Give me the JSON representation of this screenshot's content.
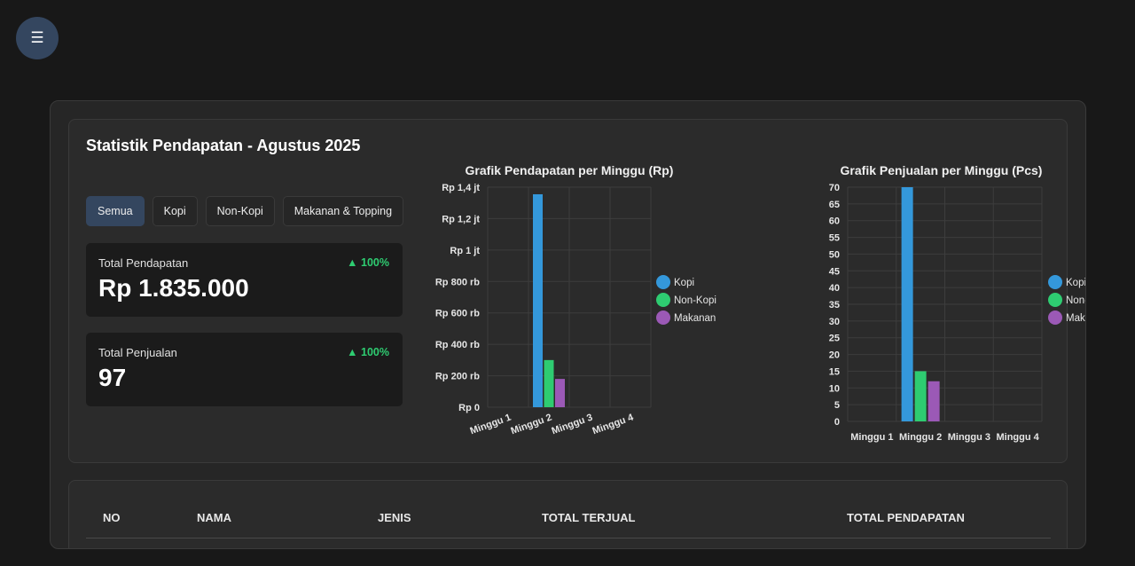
{
  "menu": {
    "icon": "hamburger-icon",
    "glyph": "☰"
  },
  "stats_card": {
    "title": "Statistik Pendapatan - Agustus 2025",
    "filters": [
      {
        "label": "Semua",
        "active": true
      },
      {
        "label": "Kopi",
        "active": false
      },
      {
        "label": "Non-Kopi",
        "active": false
      },
      {
        "label": "Makanan & Topping",
        "active": false
      }
    ],
    "total_pendapatan": {
      "label": "Total Pendapatan",
      "change": "▲ 100%",
      "value": "Rp 1.835.000"
    },
    "total_penjualan": {
      "label": "Total Penjualan",
      "change": "▲ 100%",
      "value": "97"
    }
  },
  "table": {
    "headers": [
      "NO",
      "NAMA",
      "JENIS",
      "TOTAL TERJUAL",
      "TOTAL PENDAPATAN"
    ]
  },
  "chart_data": [
    {
      "type": "bar",
      "title": "Grafik Pendapatan per Minggu (Rp)",
      "categories": [
        "Minggu 1",
        "Minggu 2",
        "Minggu 3",
        "Minggu 4"
      ],
      "ylim": [
        0,
        1400000
      ],
      "yticks": [
        0,
        200000,
        400000,
        600000,
        800000,
        1000000,
        1200000,
        1400000
      ],
      "ytick_labels": [
        "Rp 0",
        "Rp 200 rb",
        "Rp 400 rb",
        "Rp 600 rb",
        "Rp 800 rb",
        "Rp 1 jt",
        "Rp 1,2 jt",
        "Rp 1,4 jt"
      ],
      "grid": true,
      "legend": "right",
      "series": [
        {
          "name": "Kopi",
          "color": "#3498db",
          "values": [
            0,
            1355000,
            0,
            0
          ]
        },
        {
          "name": "Non-Kopi",
          "color": "#2ecc71",
          "values": [
            0,
            300000,
            0,
            0
          ]
        },
        {
          "name": "Makanan",
          "color": "#9b59b6",
          "values": [
            0,
            180000,
            0,
            0
          ]
        }
      ]
    },
    {
      "type": "bar",
      "title": "Grafik Penjualan per Minggu (Pcs)",
      "categories": [
        "Minggu 1",
        "Minggu 2",
        "Minggu 3",
        "Minggu 4"
      ],
      "ylim": [
        0,
        70
      ],
      "yticks": [
        0,
        5,
        10,
        15,
        20,
        25,
        30,
        35,
        40,
        45,
        50,
        55,
        60,
        65,
        70
      ],
      "ytick_labels": [
        "0",
        "5",
        "10",
        "15",
        "20",
        "25",
        "30",
        "35",
        "40",
        "45",
        "50",
        "55",
        "60",
        "65",
        "70"
      ],
      "grid": true,
      "legend": "right",
      "series": [
        {
          "name": "Kopi",
          "color": "#3498db",
          "values": [
            0,
            70,
            0,
            0
          ]
        },
        {
          "name": "Non-Kopi",
          "color": "#2ecc71",
          "values": [
            0,
            15,
            0,
            0
          ]
        },
        {
          "name": "Makanan",
          "color": "#9b59b6",
          "values": [
            0,
            12,
            0,
            0
          ]
        }
      ]
    }
  ]
}
